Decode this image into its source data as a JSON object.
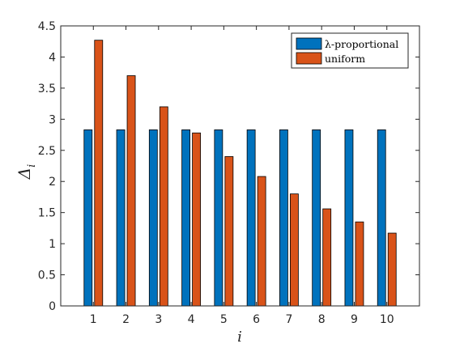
{
  "chart_data": {
    "type": "bar",
    "categories": [
      "1",
      "2",
      "3",
      "4",
      "5",
      "6",
      "7",
      "8",
      "9",
      "10"
    ],
    "series": [
      {
        "name": "λ-proportional",
        "color": "#0072BD",
        "values": [
          2.83,
          2.83,
          2.83,
          2.83,
          2.83,
          2.83,
          2.83,
          2.83,
          2.83,
          2.83
        ]
      },
      {
        "name": "uniform",
        "color": "#D95319",
        "values": [
          4.27,
          3.7,
          3.2,
          2.78,
          2.4,
          2.08,
          1.8,
          1.56,
          1.35,
          1.17
        ]
      }
    ],
    "xlabel": "i",
    "ylabel_main": "Δ",
    "ylabel_sub": "i",
    "ylim": [
      0,
      4.5
    ],
    "yticks": [
      "0",
      "0.5",
      "1",
      "1.5",
      "2",
      "2.5",
      "3",
      "3.5",
      "4",
      "4.5"
    ],
    "legend_position": "top-right",
    "grid": false
  }
}
